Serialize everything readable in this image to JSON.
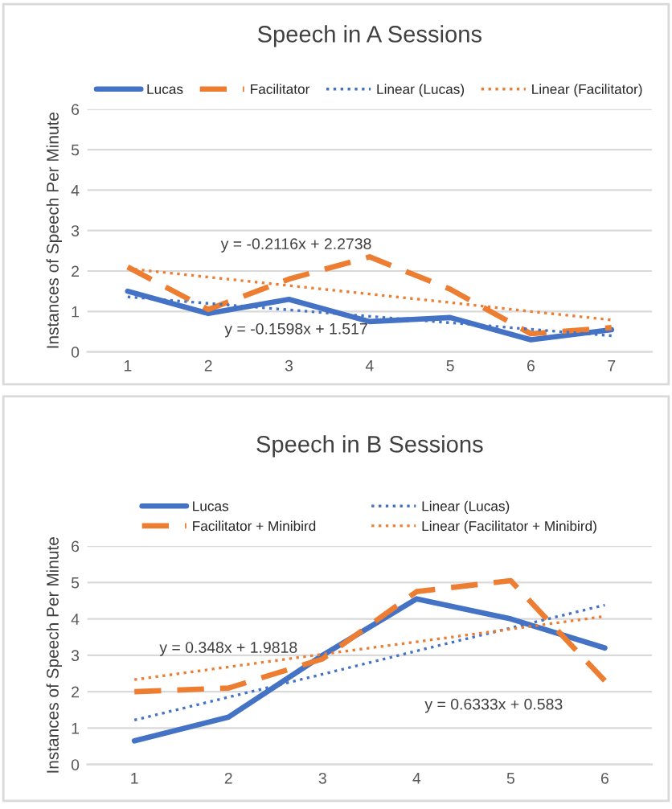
{
  "chart_data": [
    {
      "type": "line",
      "title": "Speech in A Sessions",
      "ylabel": "Instances of Speech Per Minute",
      "categories": [
        "1",
        "2",
        "3",
        "4",
        "5",
        "6",
        "7"
      ],
      "series": [
        {
          "name": "Lucas",
          "color": "#4472c4",
          "line_style": "solid",
          "values": [
            1.5,
            0.95,
            1.3,
            0.75,
            0.85,
            0.3,
            0.55
          ]
        },
        {
          "name": "Facilitator",
          "color": "#ed7d31",
          "line_style": "dashed",
          "values": [
            2.1,
            1.05,
            1.8,
            2.35,
            1.55,
            0.45,
            0.6
          ]
        },
        {
          "name": "Linear (Lucas)",
          "color": "#4472c4",
          "line_style": "dotted",
          "values": [
            1.36,
            1.2,
            1.04,
            0.88,
            0.72,
            0.56,
            0.4
          ]
        },
        {
          "name": "Linear (Facilitator)",
          "color": "#ed7d31",
          "line_style": "dotted",
          "values": [
            2.06,
            1.85,
            1.64,
            1.43,
            1.22,
            1.0,
            0.79
          ]
        }
      ],
      "ylim": [
        0,
        6
      ],
      "yticks": [
        0,
        1,
        2,
        3,
        4,
        5,
        6
      ],
      "grid": "y",
      "legend": "top",
      "marker": "none",
      "annotations": [
        "y = -0.2116x + 2.2738",
        "y = -0.1598x + 1.517"
      ]
    },
    {
      "type": "line",
      "title": "Speech in B Sessions",
      "ylabel": "Instances of Speech Per Minute",
      "categories": [
        "1",
        "2",
        "3",
        "4",
        "5",
        "6"
      ],
      "series": [
        {
          "name": "Lucas",
          "color": "#4472c4",
          "line_style": "solid",
          "values": [
            0.65,
            1.3,
            3.0,
            4.55,
            4.0,
            3.2
          ]
        },
        {
          "name": "Facilitator + Minibird",
          "color": "#ed7d31",
          "line_style": "dashed",
          "values": [
            2.0,
            2.1,
            2.9,
            4.75,
            5.05,
            2.3
          ]
        },
        {
          "name": "Linear (Lucas)",
          "color": "#4472c4",
          "line_style": "dotted",
          "values": [
            1.22,
            1.85,
            2.48,
            3.12,
            3.75,
            4.38
          ]
        },
        {
          "name": "Linear (Facilitator + Minibird)",
          "color": "#ed7d31",
          "line_style": "dotted",
          "values": [
            2.33,
            2.68,
            3.03,
            3.37,
            3.72,
            4.07
          ]
        }
      ],
      "ylim": [
        0,
        6
      ],
      "yticks": [
        0,
        1,
        2,
        3,
        4,
        5,
        6
      ],
      "grid": "y",
      "legend": "top",
      "marker": "none",
      "annotations": [
        "y = 0.348x + 1.9818",
        "y = 0.6333x + 0.583"
      ]
    }
  ]
}
